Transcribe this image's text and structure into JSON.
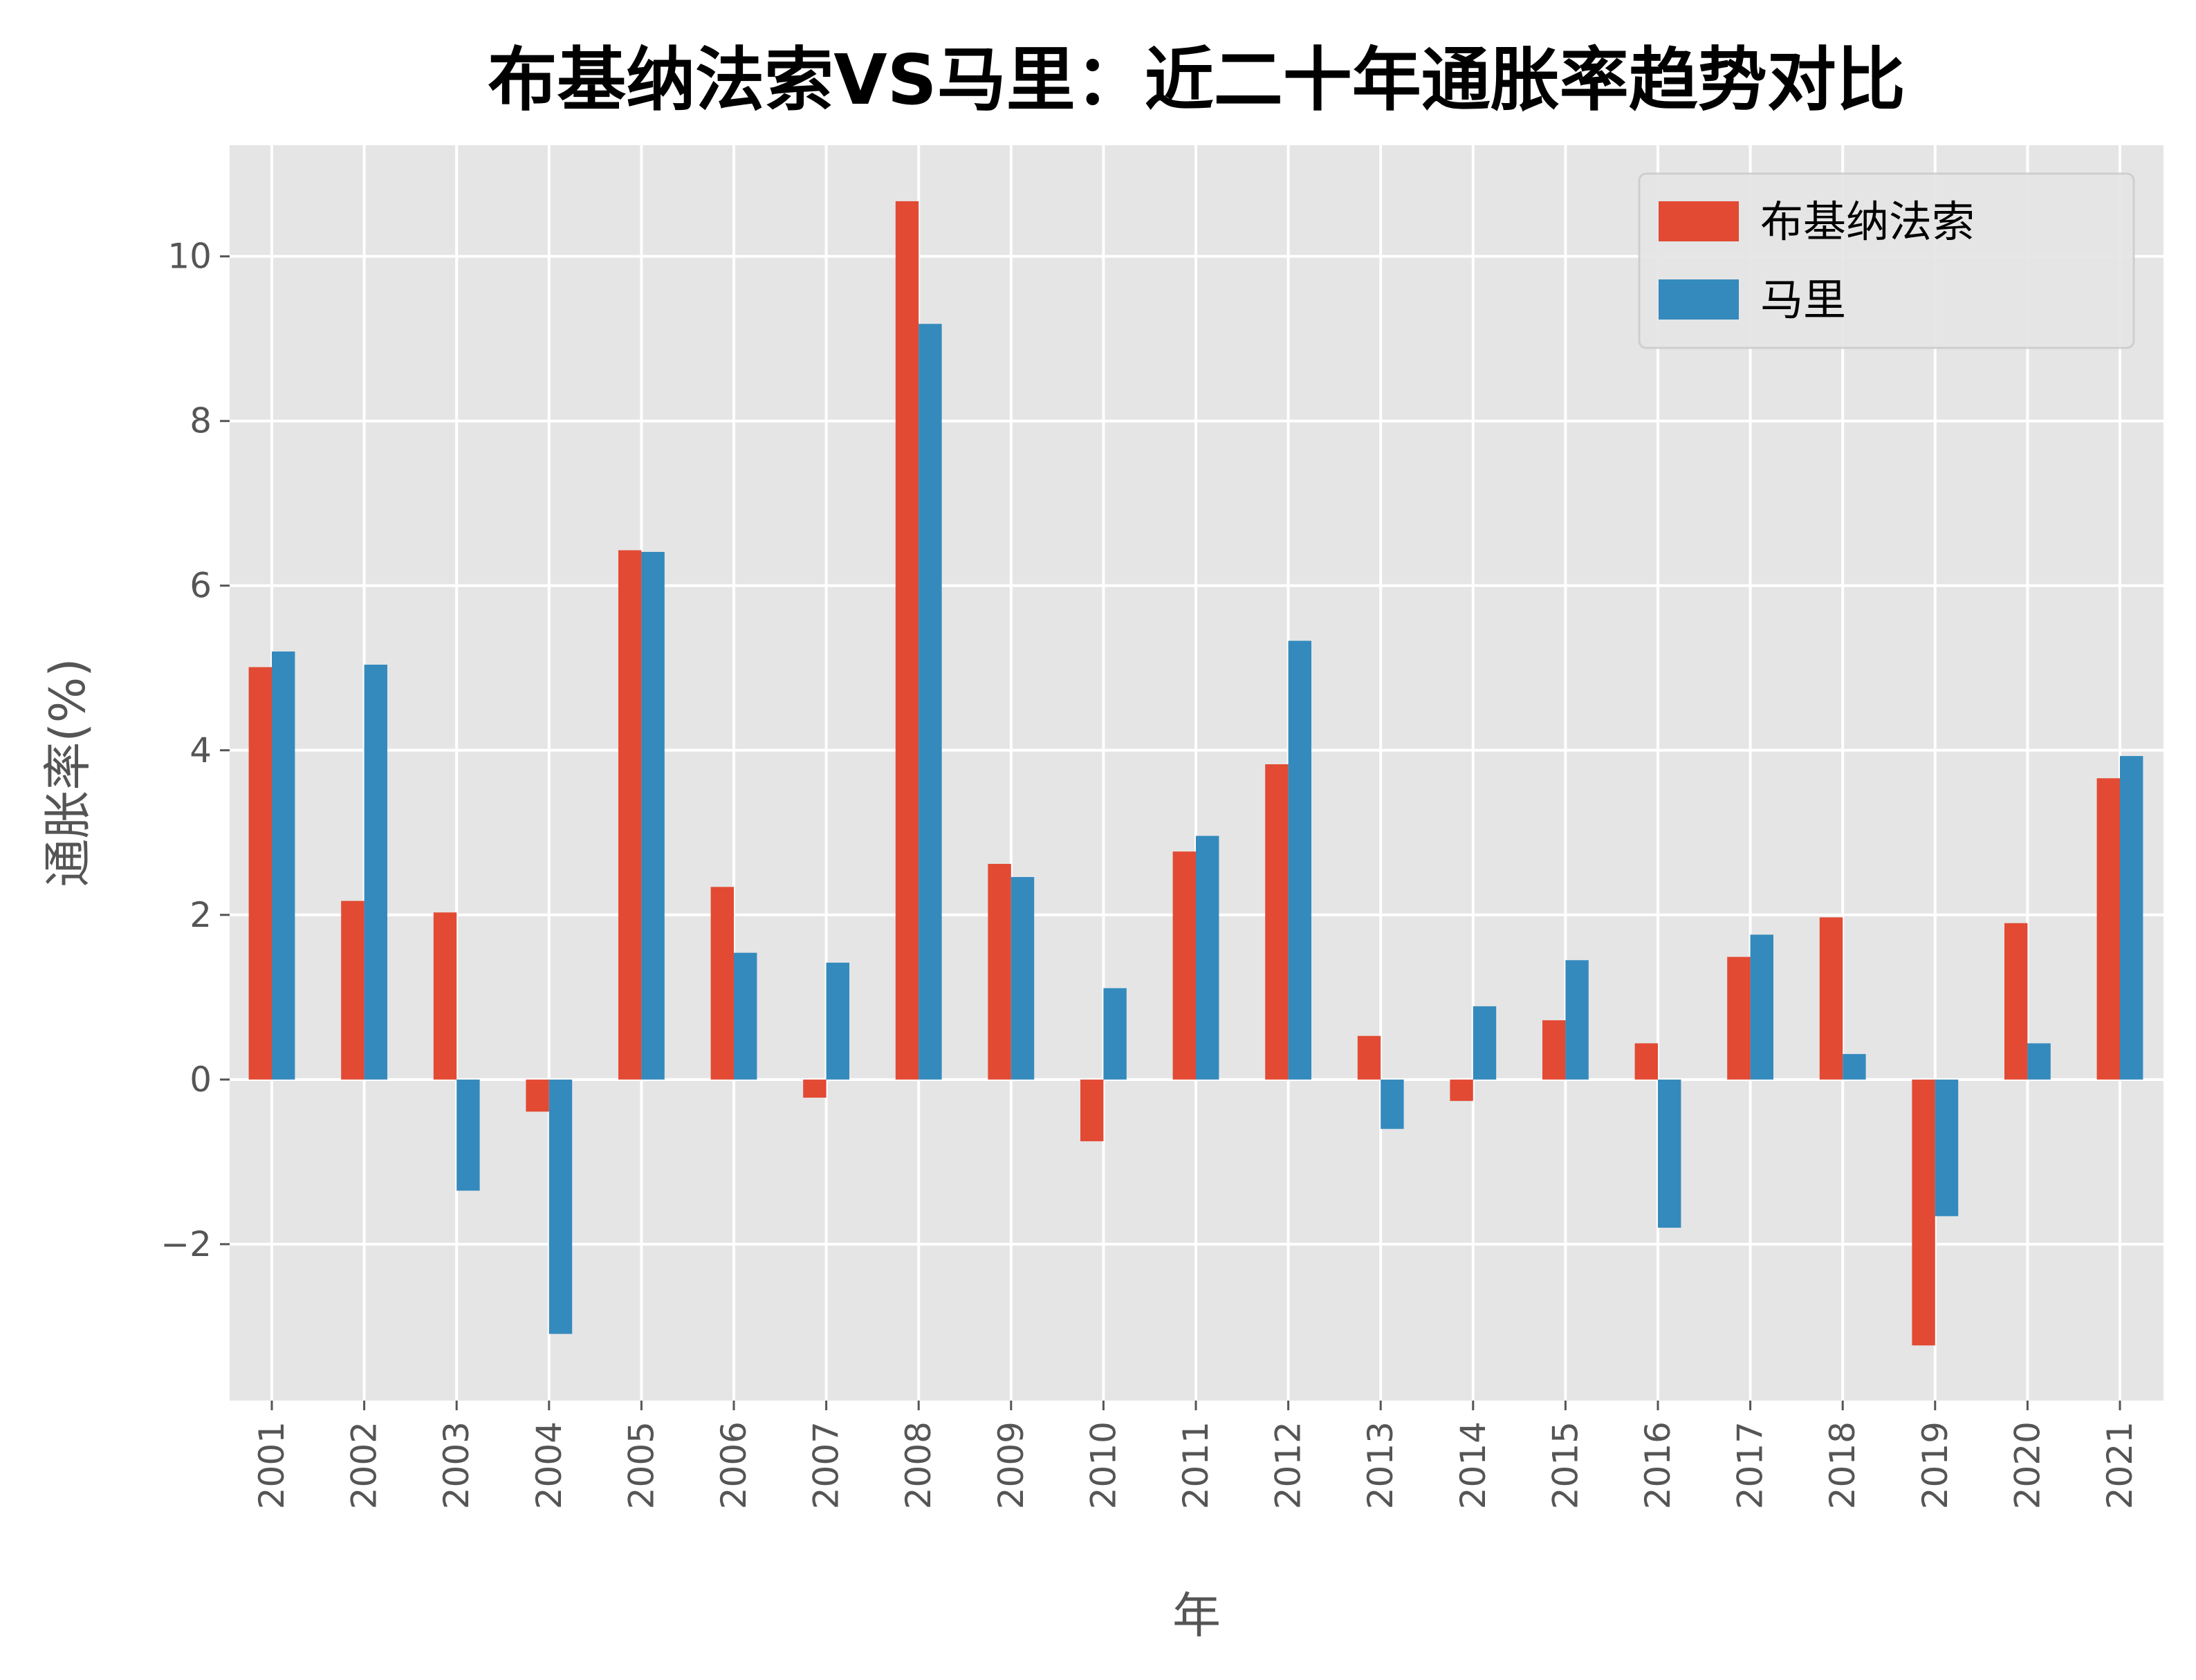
{
  "chart_data": {
    "type": "bar",
    "title": "布基纳法索VS马里：近二十年通胀率趋势对比",
    "xlabel": "年",
    "ylabel": "通胀率(%)",
    "categories": [
      "2001",
      "2002",
      "2003",
      "2004",
      "2005",
      "2006",
      "2007",
      "2008",
      "2009",
      "2010",
      "2011",
      "2012",
      "2013",
      "2014",
      "2015",
      "2016",
      "2017",
      "2018",
      "2019",
      "2020",
      "2021"
    ],
    "series": [
      {
        "name": "布基纳法索",
        "color": "#E24A33",
        "values": [
          5.01,
          2.17,
          2.03,
          -0.39,
          6.43,
          2.34,
          -0.22,
          10.67,
          2.62,
          -0.75,
          2.77,
          3.83,
          0.53,
          -0.26,
          0.72,
          0.44,
          1.49,
          1.97,
          -3.23,
          1.9,
          3.66
        ]
      },
      {
        "name": "马里",
        "color": "#348ABD",
        "values": [
          5.2,
          5.04,
          -1.35,
          -3.09,
          6.41,
          1.54,
          1.42,
          9.18,
          2.46,
          1.11,
          2.96,
          5.33,
          -0.6,
          0.89,
          1.45,
          -1.8,
          1.76,
          0.31,
          -1.66,
          0.44,
          3.93
        ]
      }
    ],
    "yticks": [
      "−2",
      "0",
      "2",
      "4",
      "6",
      "8",
      "10"
    ],
    "ytick_values": [
      -2,
      0,
      2,
      4,
      6,
      8,
      10
    ],
    "ylim": [
      -3.9,
      11.35
    ],
    "grid": true,
    "legend": "top-right",
    "background": "#E5E5E5"
  }
}
